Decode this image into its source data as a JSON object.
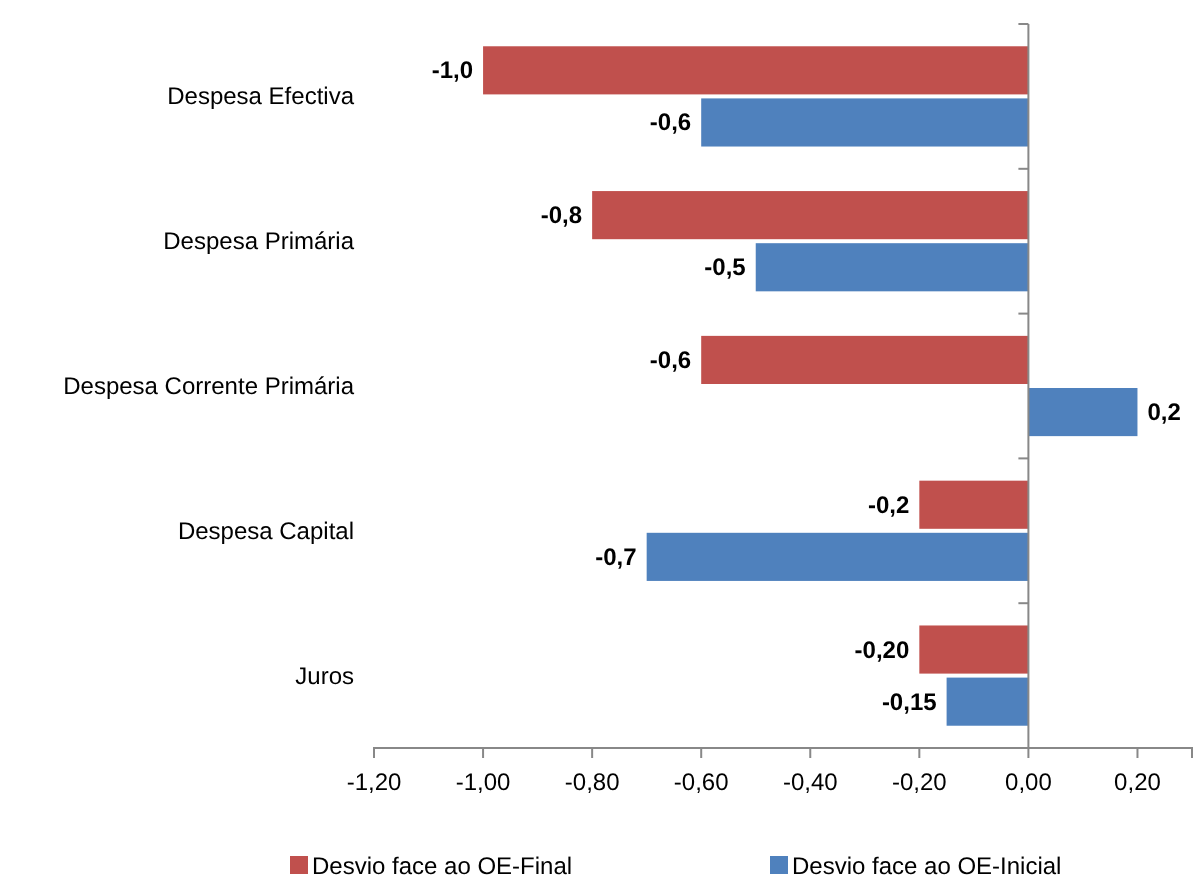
{
  "chart_data": {
    "type": "bar",
    "orientation": "horizontal",
    "categories": [
      "Despesa Efectiva",
      "Despesa Primária",
      "Despesa Corrente Primária",
      "Despesa Capital",
      "Juros"
    ],
    "series": [
      {
        "name": "Desvio face ao OE-Final",
        "color": "#c0504d",
        "values": [
          -1.0,
          -0.8,
          -0.6,
          -0.2,
          -0.2
        ],
        "value_labels": [
          "-1,0",
          "-0,8",
          "-0,6",
          "-0,2",
          "-0,20"
        ]
      },
      {
        "name": "Desvio face ao OE-Inicial",
        "color": "#4f81bd",
        "values": [
          -0.6,
          -0.5,
          0.2,
          -0.7,
          -0.15
        ],
        "value_labels": [
          "-0,6",
          "-0,5",
          "0,2",
          "-0,7",
          "-0,15"
        ]
      }
    ],
    "xlim": [
      -1.2,
      0.3
    ],
    "xticks": [
      {
        "value": -1.2,
        "label": "-1,20"
      },
      {
        "value": -1.0,
        "label": "-1,00"
      },
      {
        "value": -0.8,
        "label": "-0,80"
      },
      {
        "value": -0.6,
        "label": "-0,60"
      },
      {
        "value": -0.4,
        "label": "-0,40"
      },
      {
        "value": -0.2,
        "label": "-0,20"
      },
      {
        "value": 0,
        "label": "0,00"
      },
      {
        "value": 0.2,
        "label": "0,20"
      }
    ],
    "legend": "bottom"
  }
}
